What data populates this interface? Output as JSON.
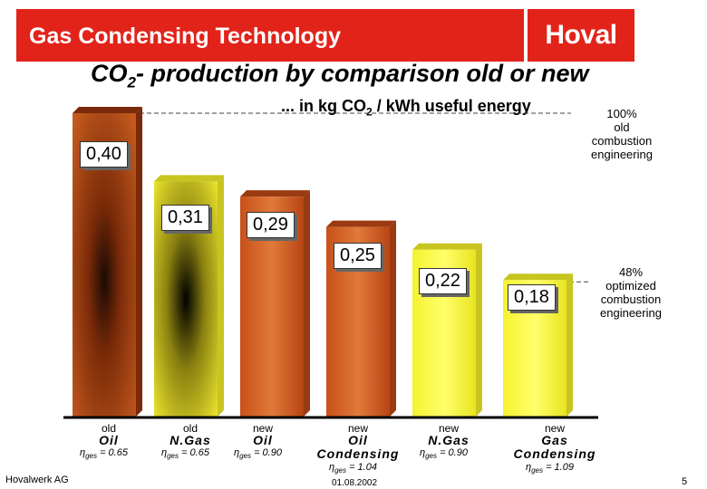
{
  "header": {
    "title": "Gas Condensing Technology",
    "logo": "Hoval"
  },
  "subtitle": {
    "pre": "CO",
    "sub": "2",
    "post": "- production by comparison old or new"
  },
  "unit": {
    "pre": "... in kg CO",
    "sub": "2",
    "post": " / kWh useful energy"
  },
  "notes": {
    "reference": [
      "100%",
      "old",
      "combustion",
      "engineering"
    ],
    "optimized": [
      "48%",
      "optimized",
      "combustion",
      "engineering"
    ]
  },
  "colors": {
    "brand": "#e2231a",
    "oil_bar": "#b5461a",
    "gas_bar": "#f0ef2a",
    "oil_new": "#d2691e",
    "gas_new": "#f2f23a"
  },
  "chart_data": {
    "type": "bar",
    "title": "CO2- production by comparison old or new",
    "ylabel": "kg CO2 / kWh useful energy",
    "ylim": [
      0,
      0.45
    ],
    "categories": [
      "old Oil",
      "old N.Gas",
      "new Oil",
      "new Oil Condensing",
      "new N.Gas",
      "new Gas Condensing"
    ],
    "values": [
      0.4,
      0.31,
      0.29,
      0.25,
      0.22,
      0.18
    ],
    "value_labels": [
      "0,40",
      "0,31",
      "0,29",
      "0,25",
      "0,22",
      "0,18"
    ],
    "bars": [
      {
        "age": "old",
        "name": "Oil",
        "eta_value": "= 0.65",
        "fuel": "oil"
      },
      {
        "age": "old",
        "name": "N.Gas",
        "eta_value": "= 0.65",
        "fuel": "gas"
      },
      {
        "age": "new",
        "name": "Oil",
        "eta_value": "= 0.90",
        "fuel": "oil"
      },
      {
        "age": "new",
        "name": "Oil Condensing",
        "eta_value": "= 1.04",
        "fuel": "oil"
      },
      {
        "age": "new",
        "name": "N.Gas",
        "eta_value": "= 0.90",
        "fuel": "gas"
      },
      {
        "age": "new",
        "name": "Gas Condensing",
        "eta_value": "= 1.09",
        "fuel": "gas"
      }
    ],
    "eta_symbol": "η",
    "eta_sub": "ges",
    "reference_lines": [
      0.4,
      0.18
    ]
  },
  "footer": {
    "left": "Hovalwerk AG",
    "date": "01.08.2002",
    "page": "5"
  }
}
